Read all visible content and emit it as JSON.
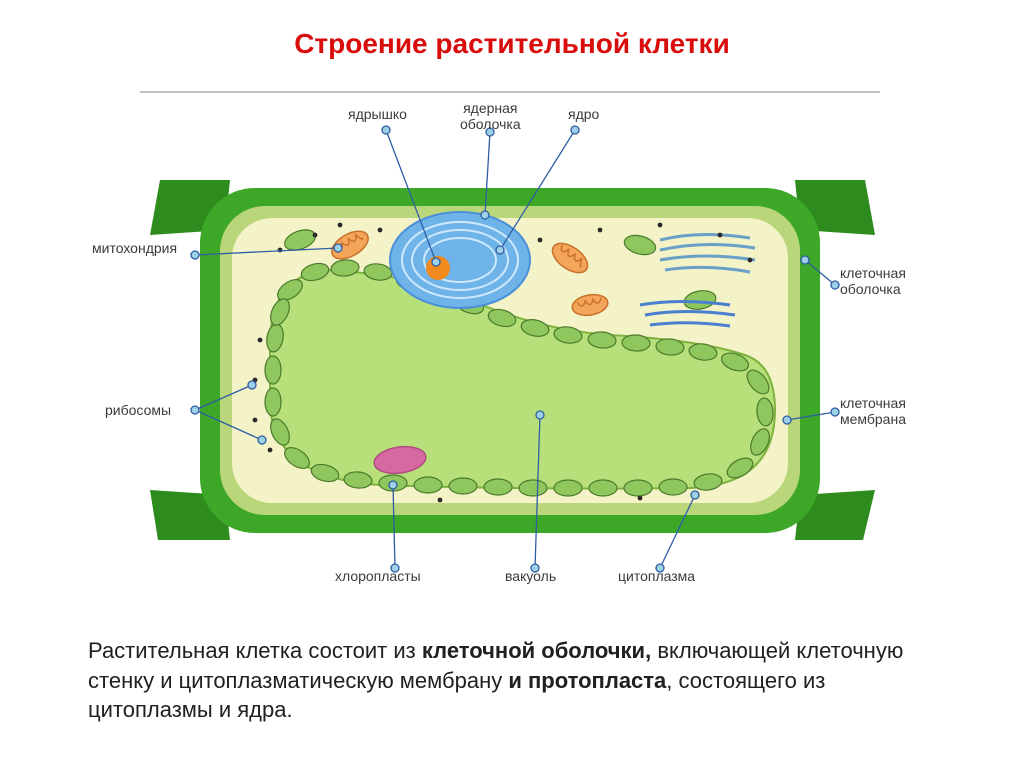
{
  "title": {
    "text": "Строение растительной клетки",
    "color": "#d90c0c",
    "fontsize": 28
  },
  "labels": {
    "yadryshko": "ядрышко",
    "yadernaya_obolochka": "ядерная\nоболочка",
    "yadro": "ядро",
    "mitokhondriya": "митохондрия",
    "ribosomy": "рибосомы",
    "khloroplasty": "хлоропласты",
    "vakuol": "вакуоль",
    "tsitoplazma": "цитоплазма",
    "kletoch_obolochka": "клеточная\nоболочка",
    "kletoch_membrana": "клеточная\nмембрана",
    "label_fontsize": 14,
    "label_color": "#3b3b3b"
  },
  "description": {
    "fontsize": 22,
    "parts": [
      {
        "t": "Растительная клетка состоит из ",
        "b": false
      },
      {
        "t": "клеточной оболочки,",
        "b": true
      },
      {
        "t": " включающей клеточную стенку и цитоплазматическую мембрану ",
        "b": false
      },
      {
        "t": "и протопласта",
        "b": true
      },
      {
        "t": ", состоящего из цитоплазмы и ядра.",
        "b": false
      }
    ]
  },
  "diagram": {
    "colors": {
      "wall_outer": "#2e8b1e",
      "wall_inner": "#3da728",
      "membrane": "#b9d67a",
      "cytoplasm": "#f4f2c7",
      "vacuole_fill": "#b7e07a",
      "vacuole_stroke": "#7fb340",
      "nucleus_fill": "#6fb4e9",
      "nucleus_stroke": "#4a90d9",
      "nucleus_inner": "#cfe8fb",
      "nucleolus": "#f08a1d",
      "chloroplast_fill": "#8fc65e",
      "chloroplast_stroke": "#4a7a2b",
      "mito_fill": "#f3a55a",
      "mito_stroke": "#c9702b",
      "er_stroke": "#6aa0c8",
      "ribosome": "#2a2a2a",
      "pink_body": "#d66aa0",
      "leader": "#2e5ea3",
      "leader_dot": "#9ed1e7",
      "frame": "#bfbfbf"
    }
  }
}
